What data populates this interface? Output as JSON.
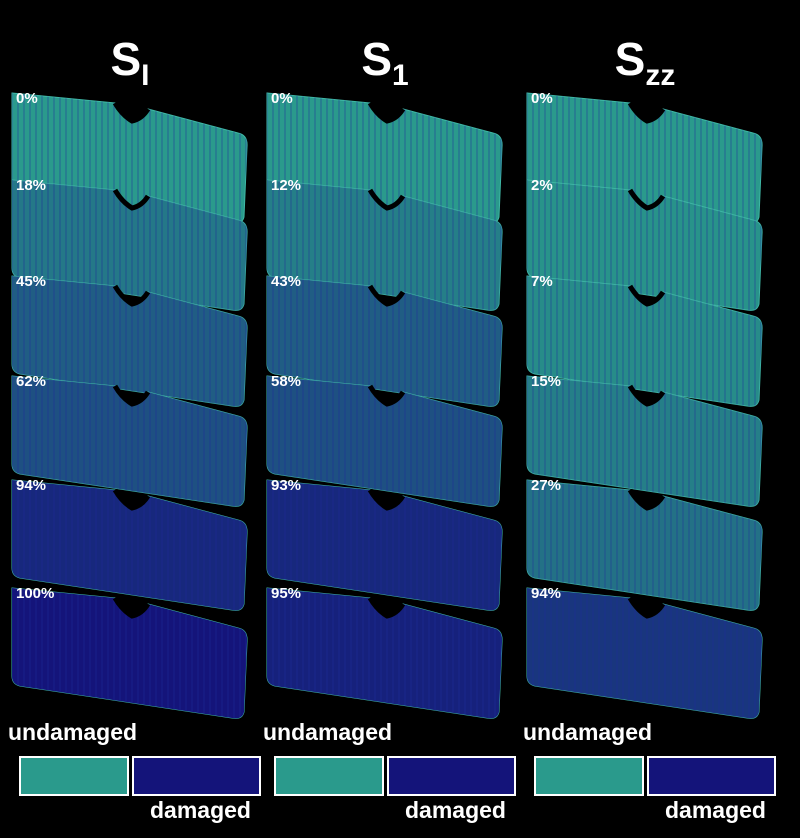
{
  "columns": [
    {
      "symbol": "S",
      "subscript": "I",
      "stages": [
        "0%",
        "18%",
        "45%",
        "62%",
        "94%",
        "100%"
      ],
      "legend": {
        "undamaged": "undamaged",
        "damaged": "damaged"
      }
    },
    {
      "symbol": "S",
      "subscript": "1",
      "stages": [
        "0%",
        "12%",
        "43%",
        "58%",
        "93%",
        "95%"
      ],
      "legend": {
        "undamaged": "undamaged",
        "damaged": "damaged"
      }
    },
    {
      "symbol": "S",
      "subscript": "zz",
      "stages": [
        "0%",
        "2%",
        "7%",
        "15%",
        "27%",
        "94%"
      ],
      "legend": {
        "undamaged": "undamaged",
        "damaged": "damaged"
      }
    }
  ]
}
